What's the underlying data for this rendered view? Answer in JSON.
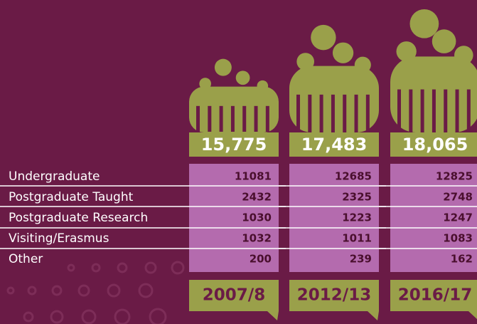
{
  "rows": [
    "Undergraduate",
    "Postgraduate Taught",
    "Postgraduate Research",
    "Visiting/Erasmus",
    "Other"
  ],
  "years": [
    {
      "label": "2007/8",
      "total": "15,775",
      "values": [
        11081,
        2432,
        1030,
        1032,
        200
      ]
    },
    {
      "label": "2012/13",
      "total": "17,483",
      "values": [
        12685,
        2325,
        1223,
        1011,
        239
      ]
    },
    {
      "label": "2016/17",
      "total": "18,065",
      "values": [
        12825,
        2748,
        1247,
        1083,
        162
      ]
    }
  ]
}
